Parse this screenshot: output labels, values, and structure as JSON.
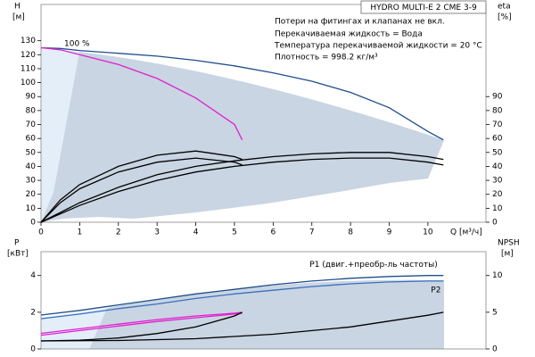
{
  "chart_data": [
    {
      "type": "line",
      "title": "HYDRO MULTI-E 2 CME 3-9",
      "notes": [
        "Потери на фитингах и клапанах не вкл.",
        "Перекачиваемая жидкость = Вода",
        "Температура перекачиваемой жидкости = 20 °C",
        "Плотность = 998.2 кг/м³"
      ],
      "annotations": [
        "100 %"
      ],
      "y_label": [
        "H",
        "[м]"
      ],
      "y2_label": [
        "eta",
        "[%]"
      ],
      "x_label": "Q [м³/ч]",
      "xlim": [
        0,
        11.5
      ],
      "xticks": [
        0,
        1,
        2,
        3,
        4,
        5,
        6,
        7,
        8,
        9,
        10
      ],
      "ylim": [
        0,
        156
      ],
      "yticks": [
        0,
        10,
        20,
        30,
        40,
        50,
        60,
        70,
        80,
        90,
        100,
        110,
        120,
        130
      ],
      "y2lim": [
        0,
        156
      ],
      "y2ticks": [
        0,
        10,
        20,
        30,
        40,
        50,
        60,
        70,
        80,
        90
      ],
      "series": [
        {
          "color": "#1f4e8c",
          "x": [
            0,
            0.5,
            1,
            2,
            3,
            4,
            5,
            6,
            7,
            8,
            9,
            10,
            10.4
          ],
          "values": [
            125,
            124.5,
            123,
            121,
            119,
            116,
            112,
            107,
            101,
            93,
            82,
            65,
            59
          ]
        },
        {
          "color": "#e020d0",
          "x": [
            0,
            0.5,
            1,
            2,
            3,
            4,
            5,
            5.2
          ],
          "values": [
            125,
            123.5,
            120,
            113,
            103,
            89,
            70,
            59
          ]
        },
        {
          "color": "#000000",
          "axis": "y2",
          "x": [
            0,
            0.5,
            1,
            2,
            3,
            4,
            5,
            5.2
          ],
          "values": [
            0,
            14,
            24,
            36,
            43,
            46,
            43,
            41
          ]
        },
        {
          "color": "#000000",
          "axis": "y2",
          "x": [
            0,
            0.5,
            1,
            2,
            3,
            4,
            5,
            5.2
          ],
          "values": [
            0,
            16,
            27,
            40,
            48,
            51,
            47,
            45
          ]
        },
        {
          "color": "#000000",
          "axis": "y2",
          "x": [
            0,
            1,
            2,
            3,
            4,
            5,
            6,
            7,
            8,
            9,
            10,
            10.4
          ],
          "values": [
            0,
            12,
            22,
            30,
            36,
            40,
            43,
            45,
            46,
            46,
            43,
            41
          ]
        },
        {
          "color": "#000000",
          "axis": "y2",
          "x": [
            0,
            1,
            2,
            3,
            4,
            5,
            6,
            7,
            8,
            9,
            10,
            10.4
          ],
          "values": [
            0,
            14,
            25,
            34,
            40,
            44,
            47,
            49,
            50,
            50,
            47,
            45
          ]
        }
      ]
    },
    {
      "type": "line",
      "y_label": [
        "P",
        "[кВт]"
      ],
      "y2_label": [
        "NPSH",
        "[м]"
      ],
      "xlim": [
        0,
        11.5
      ],
      "ylim": [
        0,
        5.3
      ],
      "yticks": [
        0,
        2,
        4
      ],
      "y2lim": [
        0,
        13.25
      ],
      "y2ticks": [
        0,
        5,
        10
      ],
      "series": [
        {
          "name": "P1 (двиг.+преобр-ль частоты)",
          "color": "#1f4e8c",
          "x": [
            0,
            1,
            2,
            3,
            4,
            5,
            6,
            7,
            8,
            9,
            10,
            10.4
          ],
          "values": [
            1.85,
            2.1,
            2.4,
            2.7,
            3.0,
            3.25,
            3.5,
            3.7,
            3.85,
            3.95,
            4.0,
            4.0
          ]
        },
        {
          "name": "P2",
          "color": "#3a6fc0",
          "x": [
            0,
            1,
            2,
            3,
            4,
            5,
            6,
            7,
            8,
            9,
            10,
            10.4
          ],
          "values": [
            1.65,
            1.9,
            2.2,
            2.45,
            2.75,
            3.0,
            3.2,
            3.4,
            3.55,
            3.65,
            3.7,
            3.7
          ]
        },
        {
          "color": "#e020d0",
          "x": [
            0,
            1,
            2,
            3,
            4,
            5,
            5.2
          ],
          "values": [
            0.85,
            1.1,
            1.35,
            1.6,
            1.8,
            1.95,
            2.0
          ]
        },
        {
          "color": "#e020d0",
          "x": [
            0,
            1,
            2,
            3,
            4,
            5,
            5.2
          ],
          "values": [
            0.75,
            1.0,
            1.25,
            1.5,
            1.7,
            1.9,
            1.95
          ]
        },
        {
          "color": "#000000",
          "axis": "y2",
          "x": [
            0,
            2,
            4,
            6,
            8,
            10,
            10.4
          ],
          "values": [
            1.1,
            1.15,
            1.4,
            2,
            3,
            4.6,
            5.0
          ]
        },
        {
          "color": "#000000",
          "axis": "y2",
          "x": [
            0,
            1,
            2,
            3,
            4,
            5,
            5.2
          ],
          "values": [
            1.1,
            1.2,
            1.5,
            2.1,
            3,
            4.5,
            5.0
          ]
        }
      ]
    }
  ]
}
